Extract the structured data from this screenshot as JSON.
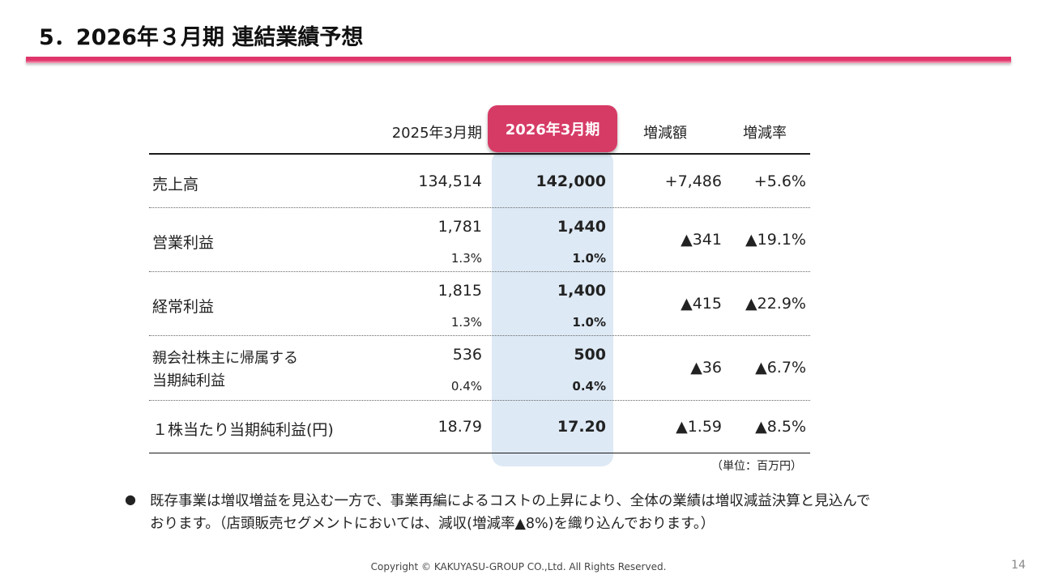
{
  "title": "5．2026年３月期 連結業績予想",
  "table": {
    "headers": [
      "2025年3月期",
      "2026年3月期",
      "増減額",
      "増減率"
    ],
    "rows": [
      {
        "label": "売上高",
        "prev": "134,514",
        "curr": "142,000",
        "diff": "+7,486",
        "rate": "+5.6%"
      },
      {
        "label": "営業利益",
        "prev": "1,781",
        "prev_margin": "1.3%",
        "curr": "1,440",
        "curr_margin": "1.0%",
        "diff": "▲341",
        "rate": "▲19.1%"
      },
      {
        "label": "経常利益",
        "prev": "1,815",
        "prev_margin": "1.3%",
        "curr": "1,400",
        "curr_margin": "1.0%",
        "diff": "▲415",
        "rate": "▲22.9%"
      },
      {
        "label_line1": "親会社株主に帰属する",
        "label_line2": "当期純利益",
        "prev": "536",
        "prev_margin": "0.4%",
        "curr": "500",
        "curr_margin": "0.4%",
        "diff": "▲36",
        "rate": "▲6.7%"
      },
      {
        "label": "１株当たり当期純利益(円)",
        "prev": "18.79",
        "curr": "17.20",
        "diff": "▲1.59",
        "rate": "▲8.5%"
      }
    ],
    "unit": "（単位：百万円）"
  },
  "note": {
    "bullet": "●",
    "text": "既存事業は増収増益を見込む一方で、事業再編によるコストの上昇により、全体の業績は増収減益決算と見込んでおります。（店頭販売セグメントにおいては、減収(増減率▲8%)を織り込んでおります。）"
  },
  "footer": "Copyright © KAKUYASU-GROUP CO.,Ltd. All Rights Reserved.",
  "page_number": "14",
  "colors": {
    "accent": "#d63b66",
    "highlight": "#dde9f5"
  }
}
